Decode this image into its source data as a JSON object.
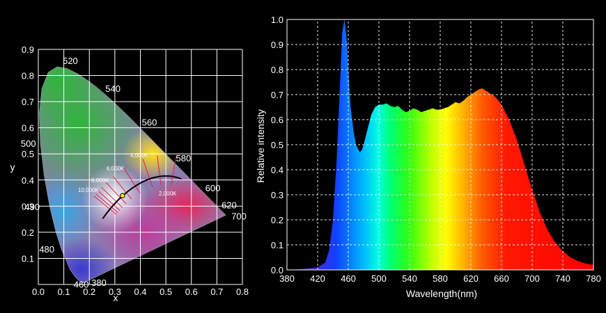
{
  "chart_data": [
    {
      "type": "scatter",
      "title": "",
      "xlabel": "x",
      "ylabel": "y",
      "xlim": [
        0,
        0.8
      ],
      "ylim": [
        0,
        0.9
      ],
      "xticks": [
        "0.0",
        "0.1",
        "0.2",
        "0.3",
        "0.4",
        "0.5",
        "0.6",
        "0.7",
        "0.8"
      ],
      "yticks": [
        "0.1",
        "0.2",
        "0.3",
        "0.4",
        "0.5",
        "0.6",
        "0.7",
        "0.8",
        "0.9"
      ],
      "grid": true,
      "spectral_locus_labels": [
        {
          "text": "380",
          "x": 0.175,
          "y": 0.005
        },
        {
          "text": "460",
          "x": 0.144,
          "y": 0.03
        },
        {
          "text": "480",
          "x": 0.091,
          "y": 0.133
        },
        {
          "text": "490",
          "x": 0.045,
          "y": 0.295
        },
        {
          "text": "500",
          "x": 0.008,
          "y": 0.538
        },
        {
          "text": "520",
          "x": 0.074,
          "y": 0.834
        },
        {
          "text": "540",
          "x": 0.23,
          "y": 0.754
        },
        {
          "text": "560",
          "x": 0.373,
          "y": 0.624
        },
        {
          "text": "580",
          "x": 0.512,
          "y": 0.487
        },
        {
          "text": "600",
          "x": 0.627,
          "y": 0.373
        },
        {
          "text": "620",
          "x": 0.691,
          "y": 0.308
        },
        {
          "text": "700",
          "x": 0.735,
          "y": 0.265
        }
      ],
      "cct_labels": [
        {
          "text": "10,000K",
          "cct": 10000
        },
        {
          "text": "8,000K",
          "cct": 8000
        },
        {
          "text": "6,000K",
          "cct": 6000
        },
        {
          "text": "4,000K",
          "cct": 4000
        },
        {
          "text": "2,000K",
          "cct": 2000
        }
      ],
      "measured_point": {
        "x": 0.33,
        "y": 0.34,
        "color": "#ffe600"
      },
      "colors": {
        "grid": "#ffffff",
        "planckian": "#000000",
        "isotherm": "#e0203c"
      }
    },
    {
      "type": "area",
      "title": "",
      "xlabel": "Wavelength(nm)",
      "ylabel": "Relative intensity",
      "xlim": [
        380,
        780
      ],
      "ylim": [
        0,
        1.0
      ],
      "xticks": [
        "380",
        "420",
        "460",
        "500",
        "540",
        "580",
        "620",
        "660",
        "700",
        "740",
        "780"
      ],
      "yticks": [
        "0.0",
        "0.1",
        "0.2",
        "0.3",
        "0.4",
        "0.5",
        "0.6",
        "0.7",
        "0.8",
        "0.9",
        "1.0"
      ],
      "grid": true,
      "fill": "wavelength-colored spectrum",
      "x": [
        380,
        400,
        420,
        430,
        435,
        440,
        445,
        450,
        452,
        455,
        458,
        460,
        463,
        467,
        470,
        475,
        478,
        480,
        485,
        490,
        495,
        500,
        505,
        510,
        515,
        520,
        525,
        530,
        535,
        540,
        545,
        550,
        555,
        560,
        565,
        570,
        575,
        580,
        585,
        590,
        595,
        600,
        605,
        610,
        615,
        620,
        625,
        630,
        635,
        640,
        645,
        650,
        655,
        660,
        670,
        680,
        690,
        700,
        710,
        720,
        730,
        740,
        750,
        760,
        770,
        780
      ],
      "values": [
        0.0,
        0.003,
        0.01,
        0.03,
        0.08,
        0.2,
        0.45,
        0.8,
        0.95,
        1.0,
        0.92,
        0.8,
        0.65,
        0.55,
        0.5,
        0.47,
        0.48,
        0.5,
        0.56,
        0.62,
        0.65,
        0.66,
        0.66,
        0.665,
        0.655,
        0.65,
        0.655,
        0.64,
        0.63,
        0.635,
        0.645,
        0.64,
        0.63,
        0.635,
        0.64,
        0.645,
        0.64,
        0.64,
        0.645,
        0.65,
        0.66,
        0.67,
        0.665,
        0.675,
        0.69,
        0.7,
        0.71,
        0.72,
        0.725,
        0.715,
        0.705,
        0.695,
        0.68,
        0.66,
        0.6,
        0.52,
        0.42,
        0.32,
        0.23,
        0.16,
        0.11,
        0.075,
        0.05,
        0.035,
        0.025,
        0.02
      ],
      "colors": {
        "grid": "#ffffff",
        "frame": "#ffffff"
      }
    }
  ]
}
